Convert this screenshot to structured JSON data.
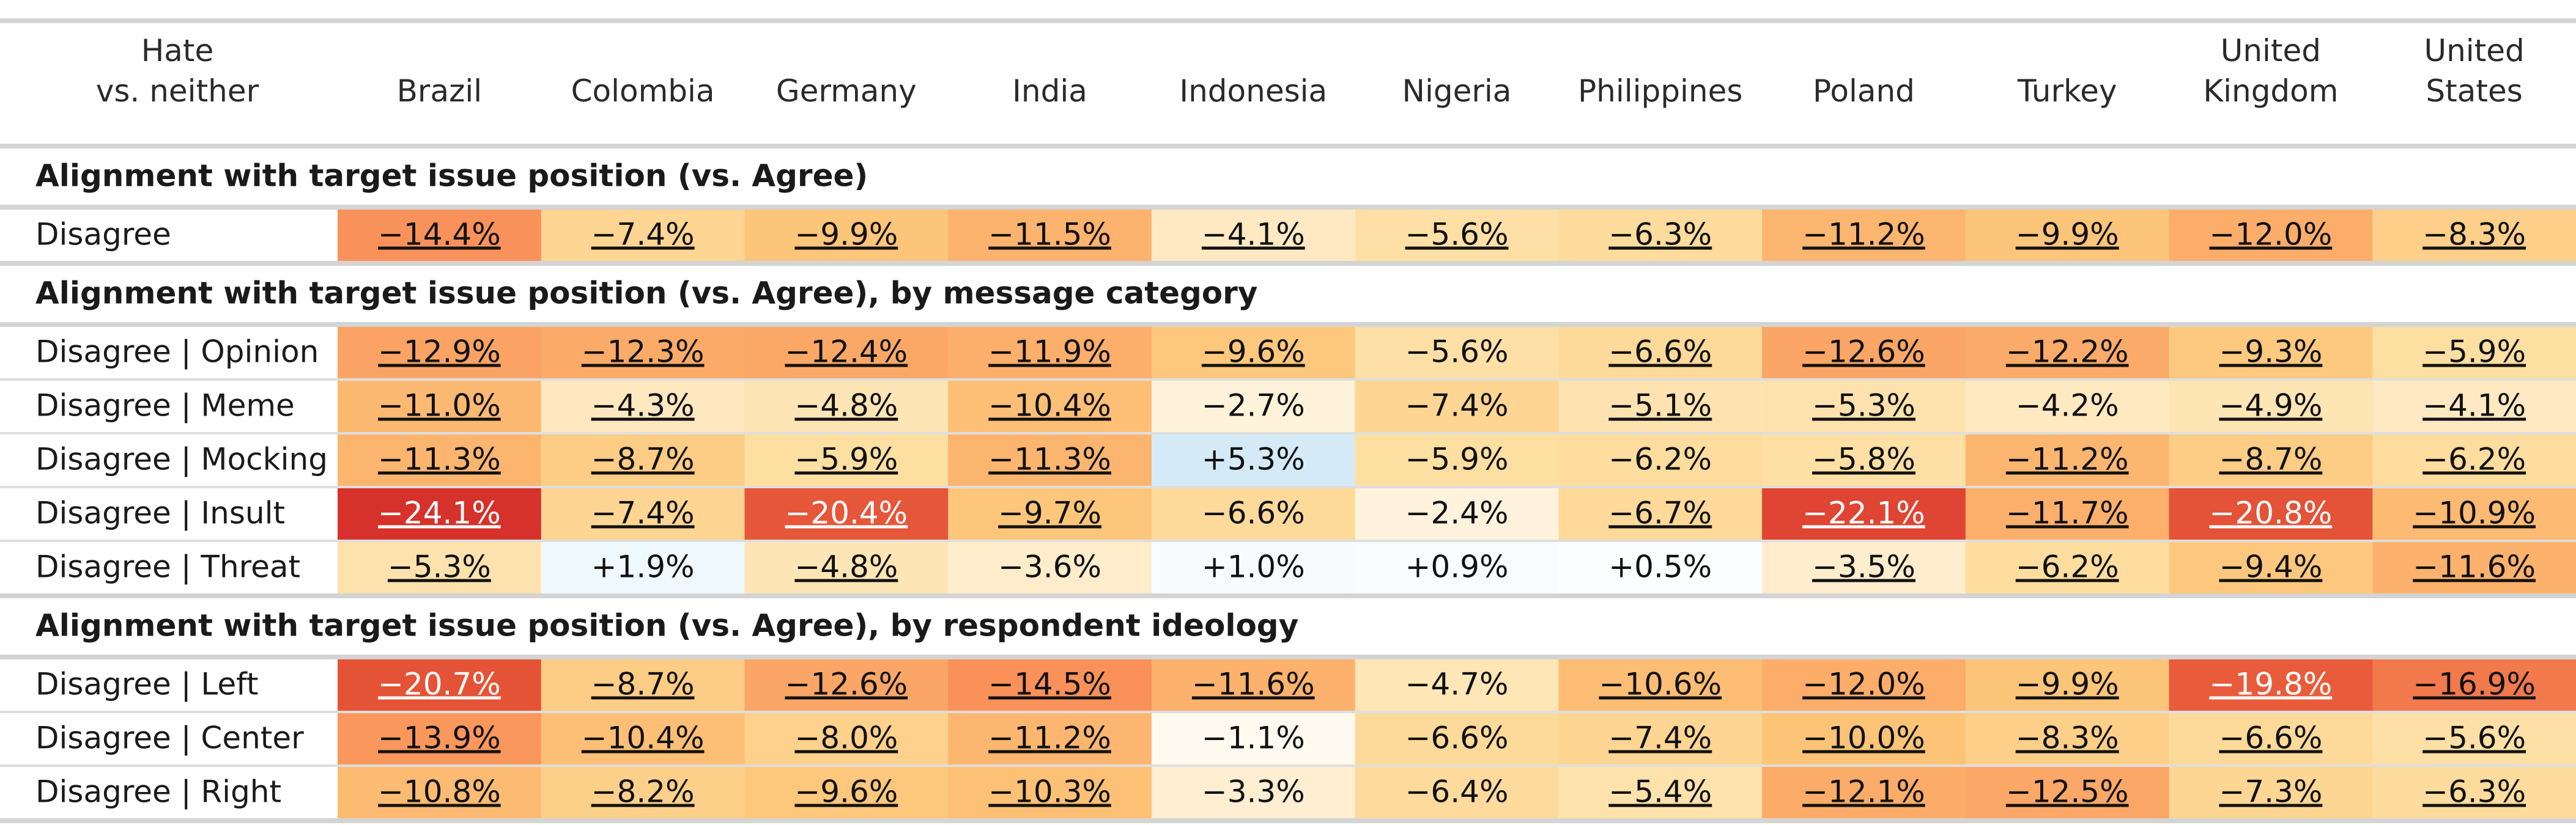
{
  "chart_data": {
    "type": "heatmap",
    "corner_label": [
      "Hate",
      "vs. neither"
    ],
    "columns": [
      [
        "Brazil"
      ],
      [
        "Colombia"
      ],
      [
        "Germany"
      ],
      [
        "India"
      ],
      [
        "Indonesia"
      ],
      [
        "Nigeria"
      ],
      [
        "Philippines"
      ],
      [
        "Poland"
      ],
      [
        "Turkey"
      ],
      [
        "United",
        "Kingdom"
      ],
      [
        "United",
        "States"
      ]
    ],
    "sections": [
      {
        "title": "Alignment with target issue position (vs. Agree)",
        "rows": [
          {
            "label": "Disagree",
            "values": [
              -14.4,
              -7.4,
              -9.9,
              -11.5,
              -4.1,
              -5.6,
              -6.3,
              -11.2,
              -9.9,
              -12.0,
              -8.3
            ],
            "display": [
              "−14.4%",
              "−7.4%",
              "−9.9%",
              "−11.5%",
              "−4.1%",
              "−5.6%",
              "−6.3%",
              "−11.2%",
              "−9.9%",
              "−12.0%",
              "−8.3%"
            ],
            "significant": [
              true,
              true,
              true,
              true,
              true,
              true,
              true,
              true,
              true,
              true,
              true
            ]
          }
        ]
      },
      {
        "title": "Alignment with target issue position (vs. Agree), by message category",
        "rows": [
          {
            "label": "Disagree | Opinion",
            "values": [
              -12.9,
              -12.3,
              -12.4,
              -11.9,
              -9.6,
              -5.6,
              -6.6,
              -12.6,
              -12.2,
              -9.3,
              -5.9
            ],
            "display": [
              "−12.9%",
              "−12.3%",
              "−12.4%",
              "−11.9%",
              "−9.6%",
              "−5.6%",
              "−6.6%",
              "−12.6%",
              "−12.2%",
              "−9.3%",
              "−5.9%"
            ],
            "significant": [
              true,
              true,
              true,
              true,
              true,
              false,
              true,
              true,
              true,
              true,
              true
            ]
          },
          {
            "label": "Disagree | Meme",
            "values": [
              -11.0,
              -4.3,
              -4.8,
              -10.4,
              -2.7,
              -7.4,
              -5.1,
              -5.3,
              -4.2,
              -4.9,
              -4.1
            ],
            "display": [
              "−11.0%",
              "−4.3%",
              "−4.8%",
              "−10.4%",
              "−2.7%",
              "−7.4%",
              "−5.1%",
              "−5.3%",
              "−4.2%",
              "−4.9%",
              "−4.1%"
            ],
            "significant": [
              true,
              true,
              true,
              true,
              false,
              false,
              true,
              true,
              false,
              true,
              true
            ]
          },
          {
            "label": "Disagree | Mocking",
            "values": [
              -11.3,
              -8.7,
              -5.9,
              -11.3,
              5.3,
              -5.9,
              -6.2,
              -5.8,
              -11.2,
              -8.7,
              -6.2
            ],
            "display": [
              "−11.3%",
              "−8.7%",
              "−5.9%",
              "−11.3%",
              "+5.3%",
              "−5.9%",
              "−6.2%",
              "−5.8%",
              "−11.2%",
              "−8.7%",
              "−6.2%"
            ],
            "significant": [
              true,
              true,
              true,
              true,
              false,
              false,
              false,
              true,
              true,
              true,
              true
            ]
          },
          {
            "label": "Disagree | Insult",
            "values": [
              -24.1,
              -7.4,
              -20.4,
              -9.7,
              -6.6,
              -2.4,
              -6.7,
              -22.1,
              -11.7,
              -20.8,
              -10.9
            ],
            "display": [
              "−24.1%",
              "−7.4%",
              "−20.4%",
              "−9.7%",
              "−6.6%",
              "−2.4%",
              "−6.7%",
              "−22.1%",
              "−11.7%",
              "−20.8%",
              "−10.9%"
            ],
            "significant": [
              true,
              true,
              true,
              true,
              false,
              false,
              true,
              true,
              true,
              true,
              true
            ]
          },
          {
            "label": "Disagree | Threat",
            "values": [
              -5.3,
              1.9,
              -4.8,
              -3.6,
              1.0,
              0.9,
              0.5,
              -3.5,
              -6.2,
              -9.4,
              -11.6
            ],
            "display": [
              "−5.3%",
              "+1.9%",
              "−4.8%",
              "−3.6%",
              "+1.0%",
              "+0.9%",
              "+0.5%",
              "−3.5%",
              "−6.2%",
              "−9.4%",
              "−11.6%"
            ],
            "significant": [
              true,
              false,
              true,
              false,
              false,
              false,
              false,
              true,
              true,
              true,
              true
            ]
          }
        ]
      },
      {
        "title": "Alignment with target issue position (vs. Agree), by respondent ideology",
        "rows": [
          {
            "label": "Disagree | Left",
            "values": [
              -20.7,
              -8.7,
              -12.6,
              -14.5,
              -11.6,
              -4.7,
              -10.6,
              -12.0,
              -9.9,
              -19.8,
              -16.9
            ],
            "display": [
              "−20.7%",
              "−8.7%",
              "−12.6%",
              "−14.5%",
              "−11.6%",
              "−4.7%",
              "−10.6%",
              "−12.0%",
              "−9.9%",
              "−19.8%",
              "−16.9%"
            ],
            "significant": [
              true,
              true,
              true,
              true,
              true,
              false,
              true,
              true,
              true,
              true,
              true
            ]
          },
          {
            "label": "Disagree | Center",
            "values": [
              -13.9,
              -10.4,
              -8.0,
              -11.2,
              -1.1,
              -6.6,
              -7.4,
              -10.0,
              -8.3,
              -6.6,
              -5.6
            ],
            "display": [
              "−13.9%",
              "−10.4%",
              "−8.0%",
              "−11.2%",
              "−1.1%",
              "−6.6%",
              "−7.4%",
              "−10.0%",
              "−8.3%",
              "−6.6%",
              "−5.6%"
            ],
            "significant": [
              true,
              true,
              true,
              true,
              false,
              false,
              true,
              true,
              true,
              true,
              true
            ]
          },
          {
            "label": "Disagree | Right",
            "values": [
              -10.8,
              -8.2,
              -9.6,
              -10.3,
              -3.3,
              -6.4,
              -5.4,
              -12.1,
              -12.5,
              -7.3,
              -6.3
            ],
            "display": [
              "−10.8%",
              "−8.2%",
              "−9.6%",
              "−10.3%",
              "−3.3%",
              "−6.4%",
              "−5.4%",
              "−12.1%",
              "−12.5%",
              "−7.3%",
              "−6.3%"
            ],
            "significant": [
              true,
              true,
              true,
              true,
              false,
              false,
              true,
              true,
              true,
              true,
              true
            ]
          }
        ]
      }
    ]
  }
}
